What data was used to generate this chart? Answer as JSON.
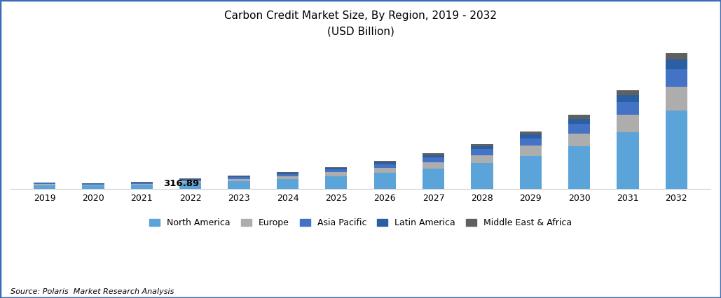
{
  "title_line1": "Carbon Credit Market Size, By Region, 2019 - 2032",
  "title_line2": "(USD Billion)",
  "source": "Source: Polaris  Market Research Analysis",
  "years": [
    2019,
    2020,
    2021,
    2022,
    2023,
    2024,
    2025,
    2026,
    2027,
    2028,
    2029,
    2030,
    2031,
    2032
  ],
  "annotation_year_idx": 3,
  "annotation_text": "316.89",
  "regions": [
    "North America",
    "Europe",
    "Asia Pacific",
    "Latin America",
    "Middle East & Africa"
  ],
  "colors": [
    "#5BA4D9",
    "#ADADAD",
    "#4472C4",
    "#2B5FA3",
    "#606060"
  ],
  "north_america": [
    55,
    48,
    60,
    90,
    115,
    148,
    192,
    245,
    310,
    395,
    505,
    650,
    870,
    1200
  ],
  "europe": [
    16,
    14,
    17,
    27,
    35,
    45,
    58,
    75,
    95,
    120,
    153,
    196,
    262,
    360
  ],
  "asia_pacific": [
    11,
    10,
    12,
    19,
    25,
    33,
    42,
    55,
    70,
    89,
    114,
    146,
    195,
    268
  ],
  "latin_america": [
    7,
    6,
    7,
    11,
    14,
    18,
    24,
    31,
    39,
    50,
    64,
    82,
    110,
    151
  ],
  "middle_east_africa": [
    4,
    4,
    5,
    7,
    9,
    12,
    16,
    21,
    27,
    34,
    43,
    56,
    74,
    102
  ],
  "background_color": "#FFFFFF",
  "border_color": "#3B6CB5",
  "title_fontsize": 11,
  "axis_fontsize": 9,
  "legend_fontsize": 9,
  "source_fontsize": 8,
  "annotation_fontsize": 9.5,
  "bar_width": 0.45
}
